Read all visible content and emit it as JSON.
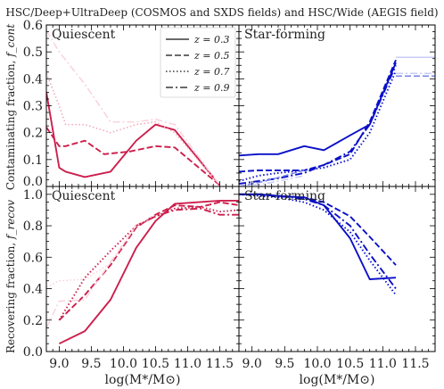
{
  "figure_title": "HSC/Deep+UltraDeep (COSMOS and SXDS fields) and HSC/Wide (AEGIS field)",
  "legend": {
    "placement": "top-right of top-left panel",
    "entries": [
      {
        "label": "z = 0.3",
        "dash": "solid"
      },
      {
        "label": "z = 0.5",
        "dash": "dashed"
      },
      {
        "label": "z = 0.7",
        "dash": "dotted"
      },
      {
        "label": "z = 0.9",
        "dash": "dashdot"
      }
    ]
  },
  "colors": {
    "quiescent": "#cc1f4c",
    "quiescent_light": "#f0a6b8",
    "quiescent_lighter": "#f9d2dd",
    "starforming": "#0a10c8",
    "starforming_light": "#7a84e8",
    "starforming_lighter": "#c8ccf4"
  },
  "chart_data": [
    {
      "type": "line",
      "panel": "top-left",
      "panel_label": "Quiescent",
      "ylabel": "Contaminating fraction, f_cont",
      "xlim": [
        8.8,
        11.8
      ],
      "ylim": [
        0.0,
        0.6
      ],
      "yticks": [
        "0.0",
        "0.1",
        "0.2",
        "0.3",
        "0.4",
        "0.5",
        "0.6"
      ],
      "series": [
        {
          "name": "z = 0.3",
          "dash": "solid",
          "shade": "dark",
          "x": [
            8.8,
            9.0,
            9.1,
            9.4,
            9.8,
            10.2,
            10.5,
            10.8,
            11.5
          ],
          "y": [
            0.35,
            0.07,
            0.055,
            0.035,
            0.055,
            0.17,
            0.23,
            0.21,
            0.005
          ]
        },
        {
          "name": "z = 0.5",
          "dash": "dashed",
          "shade": "dark",
          "x": [
            8.8,
            9.0,
            9.1,
            9.4,
            9.7,
            10.1,
            10.5,
            10.8,
            11.5
          ],
          "y": [
            0.22,
            0.15,
            0.15,
            0.17,
            0.12,
            0.13,
            0.15,
            0.145,
            0.005
          ]
        },
        {
          "name": "z = 0.7",
          "dash": "dotted",
          "shade": "light",
          "x": [
            8.8,
            9.0,
            9.1,
            9.4,
            9.8,
            10.2,
            10.5,
            10.8,
            11.5
          ],
          "y": [
            0.42,
            0.3,
            0.23,
            0.23,
            0.2,
            0.23,
            0.24,
            0.2,
            0.005
          ]
        },
        {
          "name": "z = 0.9",
          "dash": "dashdot",
          "shade": "lighter",
          "x": [
            8.8,
            9.0,
            9.1,
            9.4,
            9.8,
            10.2,
            10.5,
            10.8,
            11.5
          ],
          "y": [
            0.58,
            0.5,
            0.47,
            0.38,
            0.24,
            0.24,
            0.25,
            0.23,
            0.005
          ]
        }
      ]
    },
    {
      "type": "line",
      "panel": "top-right",
      "panel_label": "Star-forming",
      "xlim": [
        8.8,
        11.8
      ],
      "ylim": [
        0.0,
        0.6
      ],
      "series": [
        {
          "name": "z = 0.3",
          "dash": "solid",
          "shade": "dark",
          "x": [
            8.8,
            9.1,
            9.4,
            9.8,
            10.1,
            10.5,
            10.8,
            11.2
          ],
          "y": [
            0.115,
            0.12,
            0.12,
            0.15,
            0.135,
            0.19,
            0.23,
            0.46
          ]
        },
        {
          "name": "z = 0.5",
          "dash": "dashed",
          "shade": "dark",
          "x": [
            8.8,
            9.1,
            9.4,
            9.8,
            10.1,
            10.5,
            10.8,
            11.2
          ],
          "y": [
            0.055,
            0.06,
            0.06,
            0.06,
            0.08,
            0.12,
            0.24,
            0.47
          ]
        },
        {
          "name": "z = 0.7",
          "dash": "dotted",
          "shade": "dark",
          "x": [
            8.8,
            9.1,
            9.4,
            9.8,
            10.1,
            10.5,
            10.8,
            11.2
          ],
          "y": [
            0.02,
            0.04,
            0.05,
            0.06,
            0.07,
            0.1,
            0.2,
            0.43
          ]
        },
        {
          "name": "z = 0.9",
          "dash": "dashdot",
          "shade": "dark",
          "x": [
            8.8,
            9.1,
            9.4,
            9.8,
            10.1,
            10.5,
            10.8,
            11.2
          ],
          "y": [
            0.01,
            0.02,
            0.03,
            0.05,
            0.08,
            0.13,
            0.23,
            0.45
          ]
        },
        {
          "name": "z = 0.5",
          "dash": "dashed",
          "shade": "light",
          "x": [
            8.8,
            9.2,
            9.8
          ],
          "y": [
            0.0,
            0.02,
            0.06
          ]
        },
        {
          "name": "z = 0.9",
          "dash": "dashdot",
          "shade": "lighter",
          "x": [
            8.8,
            9.2,
            9.8
          ],
          "y": [
            0.0,
            0.01,
            0.04
          ]
        },
        {
          "name": "z = 0.7",
          "dash": "solid",
          "shade": "lighter",
          "x": [
            11.2,
            11.8
          ],
          "y": [
            0.48,
            0.48
          ]
        },
        {
          "name": "z = 0.7",
          "dash": "dashdot",
          "shade": "lighter",
          "x": [
            11.2,
            11.8
          ],
          "y": [
            0.42,
            0.42
          ]
        },
        {
          "name": "z = 0.5",
          "dash": "dashed",
          "shade": "light",
          "x": [
            11.2,
            11.8
          ],
          "y": [
            0.41,
            0.41
          ]
        }
      ]
    },
    {
      "type": "line",
      "panel": "bottom-left",
      "panel_label": "Quiescent",
      "ylabel": "Recovering fraction, f_recov",
      "xlabel": "log(M*/M⊙)",
      "xlim": [
        8.8,
        11.8
      ],
      "ylim": [
        0.0,
        1.05
      ],
      "yticks": [
        "0.0",
        "0.2",
        "0.4",
        "0.6",
        "0.8",
        "1.0"
      ],
      "xticks": [
        "9.0",
        "9.5",
        "10.0",
        "10.5",
        "11.0",
        "11.5"
      ],
      "series": [
        {
          "name": "z = 0.3",
          "dash": "solid",
          "shade": "dark",
          "x": [
            9.0,
            9.4,
            9.8,
            10.2,
            10.5,
            10.8,
            11.5,
            11.8
          ],
          "y": [
            0.05,
            0.13,
            0.33,
            0.66,
            0.83,
            0.94,
            0.96,
            0.96
          ]
        },
        {
          "name": "z = 0.5",
          "dash": "dashed",
          "shade": "dark",
          "x": [
            9.0,
            9.4,
            9.8,
            10.2,
            10.5,
            10.8,
            11.2,
            11.5,
            11.8
          ],
          "y": [
            0.2,
            0.36,
            0.55,
            0.79,
            0.87,
            0.93,
            0.92,
            0.95,
            0.93
          ]
        },
        {
          "name": "z = 0.7",
          "dash": "dotted",
          "shade": "dark",
          "x": [
            9.0,
            9.4,
            9.8,
            10.2,
            10.5,
            10.8,
            11.2,
            11.5,
            11.8
          ],
          "y": [
            0.2,
            0.47,
            0.64,
            0.8,
            0.86,
            0.91,
            0.92,
            0.89,
            0.9
          ]
        },
        {
          "name": "z = 0.9",
          "dash": "dashdot",
          "shade": "dark",
          "x": [
            10.2,
            10.5,
            10.8,
            11.2,
            11.5,
            11.8
          ],
          "y": [
            0.8,
            0.86,
            0.9,
            0.91,
            0.87,
            0.87
          ]
        },
        {
          "name": "z = 0.7",
          "dash": "dotted",
          "shade": "lighter",
          "x": [
            8.8,
            9.0,
            9.4,
            9.8,
            10.2,
            10.5
          ],
          "y": [
            0.41,
            0.45,
            0.46,
            0.56,
            0.8,
            0.87
          ]
        },
        {
          "name": "z = 0.9",
          "dash": "dashdot",
          "shade": "lighter",
          "x": [
            8.8,
            9.0,
            9.4,
            9.8,
            10.2
          ],
          "y": [
            0.15,
            0.32,
            0.33,
            0.57,
            0.8
          ]
        }
      ]
    },
    {
      "type": "line",
      "panel": "bottom-right",
      "panel_label": "Star-forming",
      "xlabel": "log(M*/M⊙)",
      "xlim": [
        8.8,
        11.8
      ],
      "ylim": [
        0.0,
        1.05
      ],
      "xticks": [
        "9.0",
        "9.5",
        "10.0",
        "10.5",
        "11.0",
        "11.5"
      ],
      "series": [
        {
          "name": "z = 0.3",
          "dash": "solid",
          "shade": "dark",
          "x": [
            8.8,
            9.1,
            9.4,
            9.8,
            10.1,
            10.5,
            10.8,
            11.2
          ],
          "y": [
            1.0,
            1.0,
            0.99,
            0.98,
            0.93,
            0.72,
            0.46,
            0.47
          ]
        },
        {
          "name": "z = 0.5",
          "dash": "dashed",
          "shade": "dark",
          "x": [
            8.8,
            9.1,
            9.4,
            9.8,
            10.1,
            10.5,
            10.8,
            11.2
          ],
          "y": [
            1.0,
            1.0,
            0.99,
            0.98,
            0.95,
            0.86,
            0.73,
            0.55
          ]
        },
        {
          "name": "z = 0.7",
          "dash": "dotted",
          "shade": "dark",
          "x": [
            8.8,
            9.1,
            9.4,
            9.8,
            10.1,
            10.5,
            10.8,
            11.2
          ],
          "y": [
            1.0,
            0.99,
            0.98,
            0.95,
            0.9,
            0.76,
            0.58,
            0.36
          ]
        },
        {
          "name": "z = 0.9",
          "dash": "dashdot",
          "shade": "dark",
          "x": [
            8.8,
            9.1,
            9.4,
            9.8,
            10.1,
            10.5,
            10.8,
            11.2
          ],
          "y": [
            1.0,
            1.0,
            0.99,
            0.97,
            0.93,
            0.8,
            0.62,
            0.4
          ]
        }
      ]
    }
  ]
}
